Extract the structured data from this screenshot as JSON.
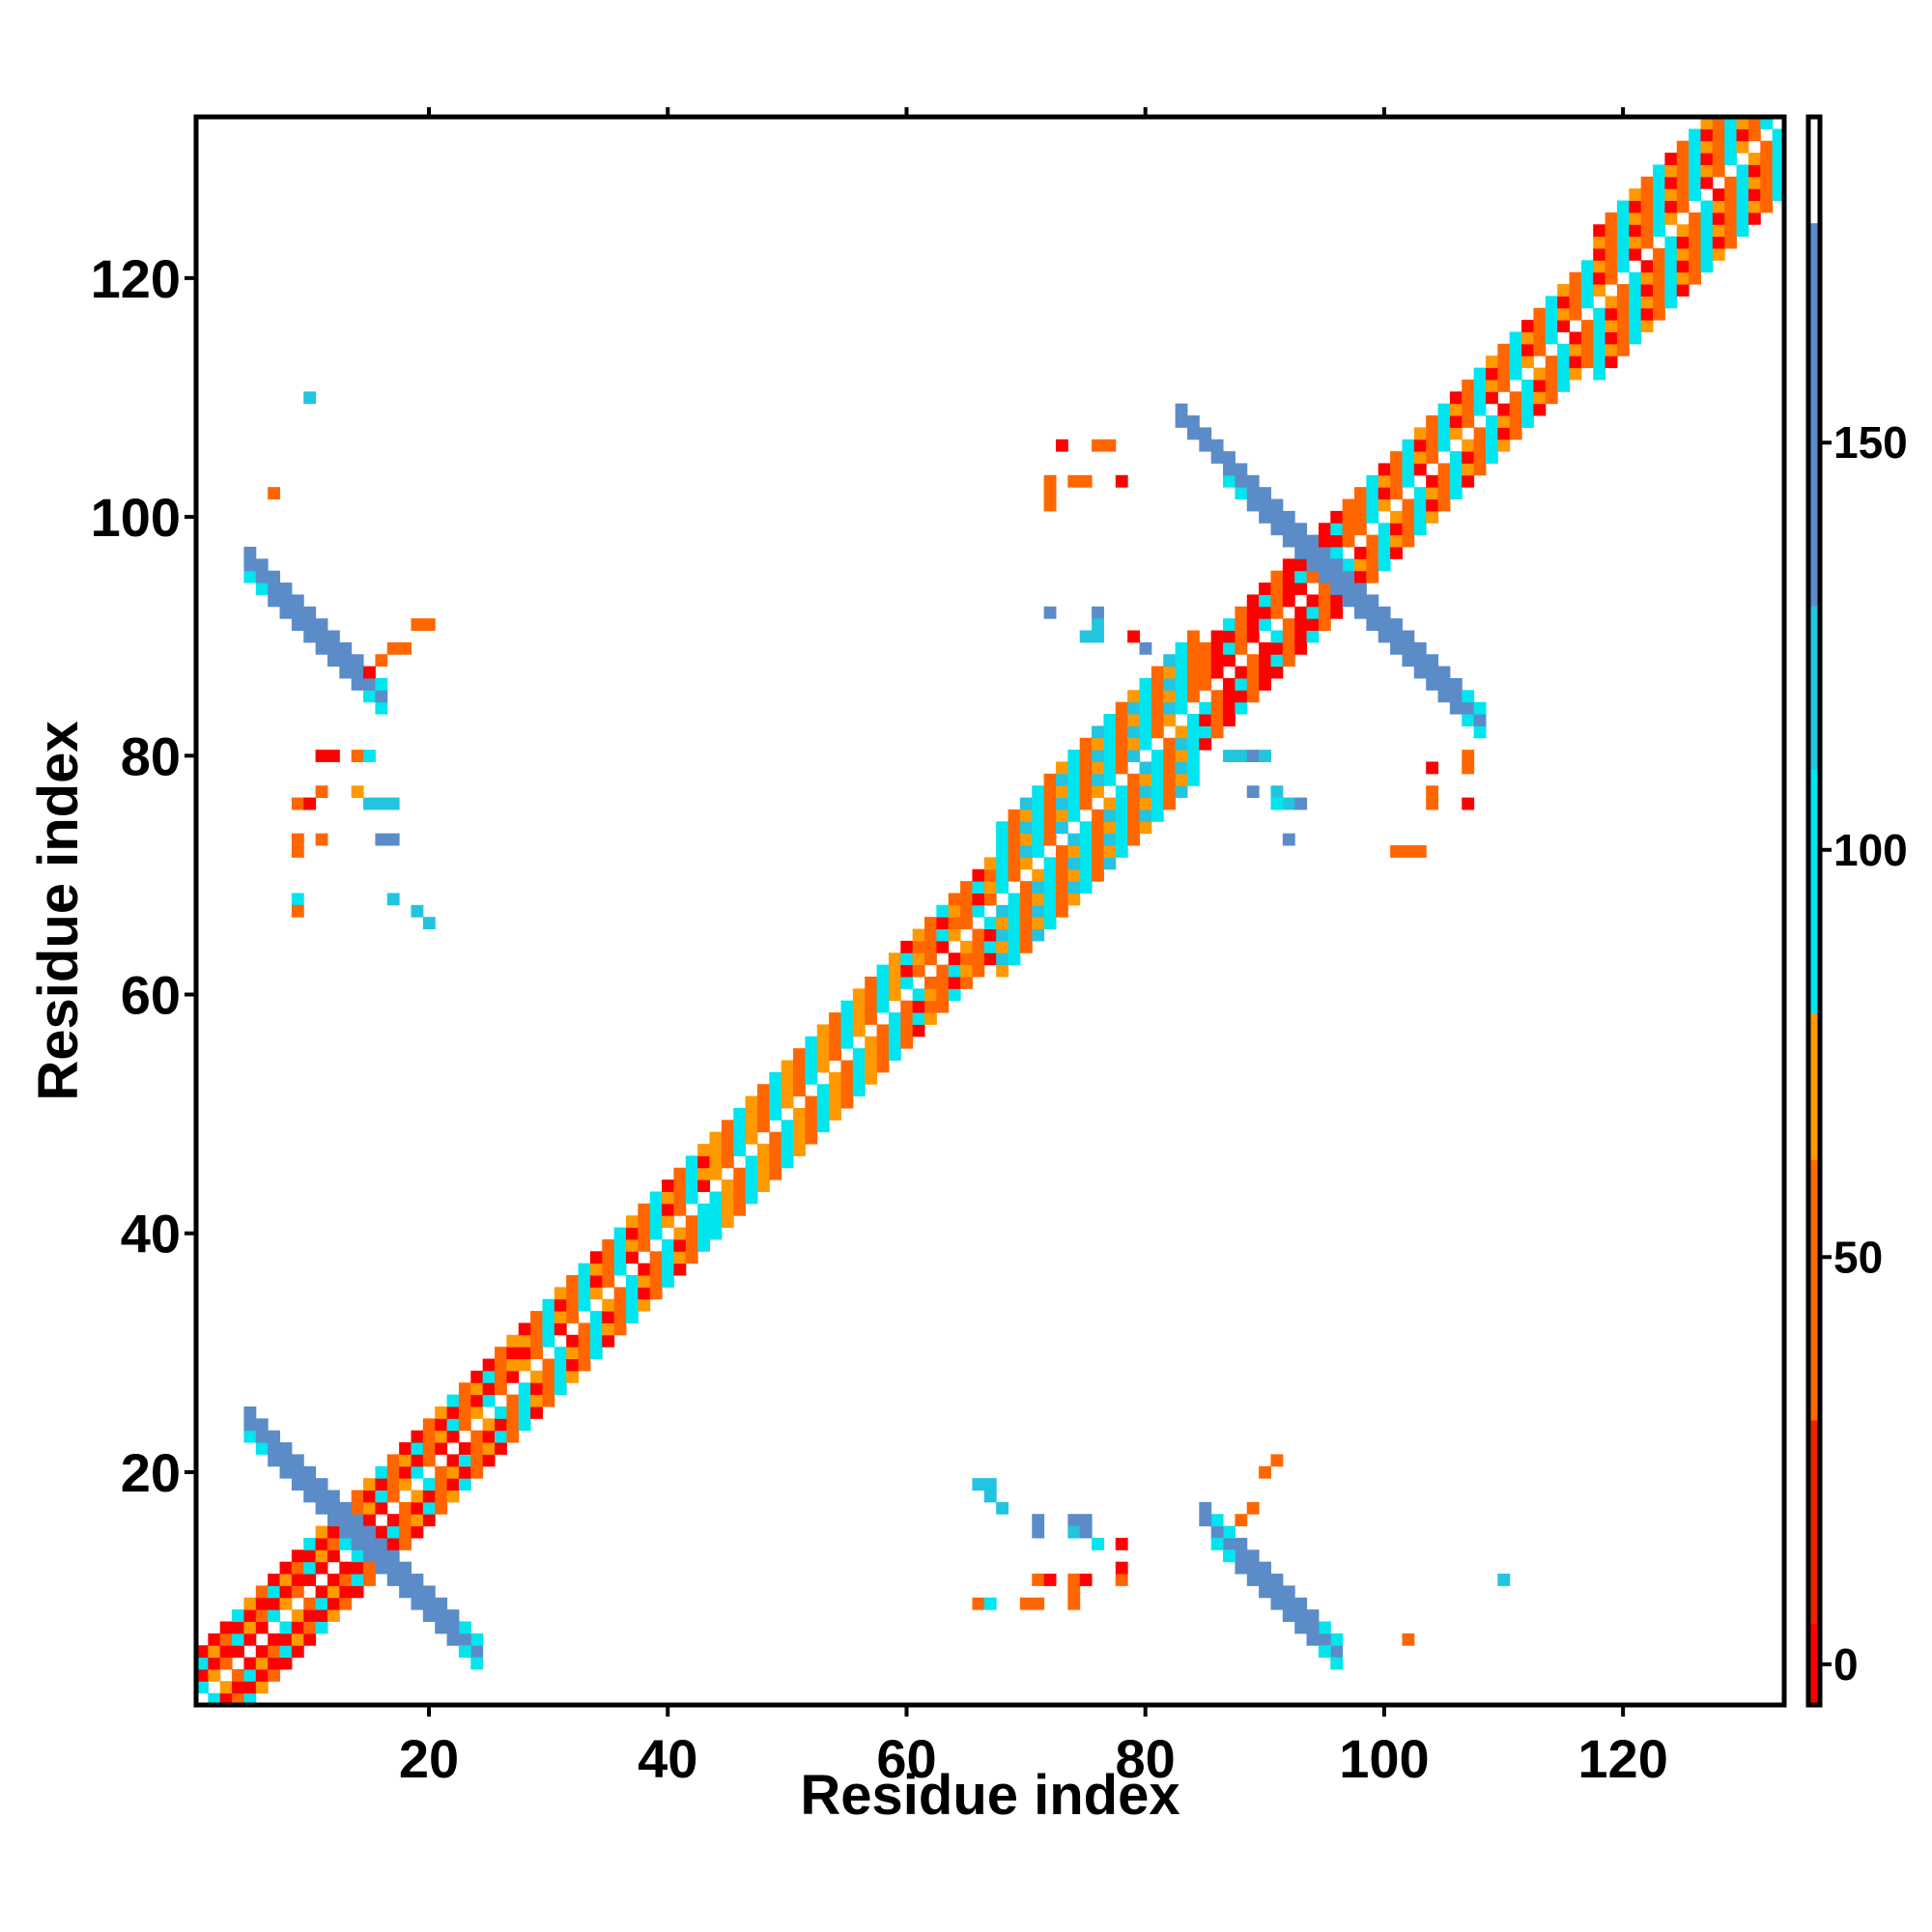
{
  "chart_data": {
    "type": "heatmap",
    "title": "",
    "xlabel": "Residue index",
    "ylabel": "Residue index",
    "xlim": [
      0.5,
      133.5
    ],
    "ylim": [
      0.5,
      133.5
    ],
    "x_ticks": [
      20,
      40,
      60,
      80,
      100,
      120
    ],
    "y_ticks": [
      20,
      40,
      60,
      80,
      100,
      120
    ],
    "grid": false,
    "colorbar": {
      "position": "right",
      "range": [
        -5,
        190
      ],
      "ticks": [
        0,
        50,
        100,
        150
      ],
      "stops": [
        {
          "from": -5,
          "to": 5,
          "color": "#ff0000"
        },
        {
          "from": 5,
          "to": 30,
          "color": "#ee2200"
        },
        {
          "from": 30,
          "to": 62,
          "color": "#ff6a00"
        },
        {
          "from": 62,
          "to": 80,
          "color": "#ff9900"
        },
        {
          "from": 80,
          "to": 110,
          "color": "#00e5ee"
        },
        {
          "from": 110,
          "to": 130,
          "color": "#22c4e0"
        },
        {
          "from": 130,
          "to": 177,
          "color": "#5b8cc8"
        },
        {
          "from": 177,
          "to": 190,
          "color": "#ffffff"
        }
      ]
    },
    "palette": {
      "r": "#ff0000",
      "o": "#ff6600",
      "y": "#ff9900",
      "c": "#00e5ee",
      "t": "#22c4e0",
      "b": "#5b8cc8"
    },
    "diagonal_band": {
      "half_width_small": 4,
      "half_width_large": 6,
      "segments": [
        {
          "from": 1,
          "to": 13,
          "colors": [
            "y",
            "o",
            "r",
            "r",
            "r",
            "c"
          ]
        },
        {
          "from": 14,
          "to": 27,
          "colors": [
            "o",
            "r",
            "r",
            "o",
            "y",
            "c"
          ]
        },
        {
          "from": 28,
          "to": 43,
          "colors": [
            "o",
            "c",
            "y",
            "o",
            "c",
            "r"
          ]
        },
        {
          "from": 44,
          "to": 59,
          "colors": [
            "y",
            "o",
            "c",
            "y",
            "o",
            "c"
          ]
        },
        {
          "from": 60,
          "to": 67,
          "colors": [
            "o",
            "r",
            "y",
            "o",
            "c",
            "o"
          ]
        },
        {
          "from": 68,
          "to": 84,
          "colors": [
            "c",
            "o",
            "y",
            "c",
            "o",
            "t"
          ]
        },
        {
          "from": 85,
          "to": 97,
          "colors": [
            "r",
            "r",
            "o",
            "r",
            "c",
            "o"
          ]
        },
        {
          "from": 98,
          "to": 133,
          "colors": [
            "o",
            "c",
            "y",
            "o",
            "c",
            "r"
          ]
        }
      ]
    },
    "antiparallel_strands": [
      {
        "sum": 29,
        "from": 5,
        "to": 24,
        "core": "b",
        "edge": "c"
      },
      {
        "sum": 191,
        "from": 87,
        "to": 108,
        "core": "b",
        "edge": "c"
      },
      {
        "sum": 101,
        "from": 5,
        "to": 16,
        "core": "b",
        "edge": "c"
      },
      {
        "sum": 101,
        "from": 86,
        "to": 96,
        "core": "b",
        "edge": "c"
      }
    ],
    "contacts": [
      [
        10,
        110,
        "t"
      ],
      [
        7,
        102,
        "o"
      ],
      [
        19,
        91,
        "o"
      ],
      [
        20,
        91,
        "o"
      ],
      [
        17,
        89,
        "o"
      ],
      [
        18,
        89,
        "o"
      ],
      [
        16,
        88,
        "o"
      ],
      [
        15,
        87,
        "r"
      ],
      [
        11,
        80,
        "r"
      ],
      [
        12,
        80,
        "r"
      ],
      [
        14,
        80,
        "o"
      ],
      [
        15,
        80,
        "c"
      ],
      [
        9,
        76,
        "o"
      ],
      [
        10,
        76,
        "r"
      ],
      [
        11,
        77,
        "o"
      ],
      [
        14,
        77,
        "y"
      ],
      [
        15,
        76,
        "t"
      ],
      [
        16,
        76,
        "t"
      ],
      [
        17,
        76,
        "t"
      ],
      [
        9,
        73,
        "o"
      ],
      [
        9,
        72,
        "o"
      ],
      [
        11,
        73,
        "o"
      ],
      [
        16,
        73,
        "b"
      ],
      [
        17,
        73,
        "b"
      ],
      [
        9,
        68,
        "c"
      ],
      [
        9,
        67,
        "o"
      ],
      [
        17,
        68,
        "t"
      ],
      [
        19,
        67,
        "t"
      ],
      [
        20,
        66,
        "t"
      ],
      [
        73,
        106,
        "r"
      ],
      [
        76,
        106,
        "o"
      ],
      [
        77,
        106,
        "o"
      ],
      [
        72,
        103,
        "o"
      ],
      [
        72,
        102,
        "o"
      ],
      [
        72,
        101,
        "o"
      ],
      [
        74,
        103,
        "o"
      ],
      [
        75,
        103,
        "o"
      ],
      [
        78,
        103,
        "r"
      ],
      [
        72,
        92,
        "b"
      ],
      [
        75,
        90,
        "t"
      ],
      [
        76,
        90,
        "t"
      ],
      [
        76,
        92,
        "b"
      ],
      [
        76,
        91,
        "t"
      ],
      [
        79,
        90,
        "r"
      ],
      [
        80,
        89,
        "b"
      ],
      [
        87,
        80,
        "t"
      ],
      [
        88,
        80,
        "t"
      ],
      [
        89,
        80,
        "b"
      ],
      [
        90,
        80,
        "t"
      ],
      [
        89,
        77,
        "b"
      ],
      [
        91,
        77,
        "t"
      ],
      [
        92,
        76,
        "t"
      ],
      [
        93,
        76,
        "b"
      ],
      [
        91,
        76,
        "c"
      ],
      [
        92,
        73,
        "b"
      ],
      [
        101,
        72,
        "o"
      ],
      [
        102,
        72,
        "o"
      ],
      [
        103,
        72,
        "o"
      ],
      [
        104,
        76,
        "o"
      ],
      [
        104,
        77,
        "o"
      ],
      [
        104,
        79,
        "r"
      ],
      [
        107,
        79,
        "o"
      ],
      [
        107,
        80,
        "o"
      ],
      [
        107,
        76,
        "r"
      ],
      [
        66,
        19,
        "t"
      ],
      [
        67,
        19,
        "t"
      ],
      [
        67,
        18,
        "t"
      ],
      [
        68,
        17,
        "t"
      ],
      [
        71,
        16,
        "b"
      ],
      [
        71,
        15,
        "b"
      ],
      [
        74,
        16,
        "b"
      ],
      [
        75,
        16,
        "b"
      ],
      [
        74,
        15,
        "t"
      ],
      [
        75,
        15,
        "b"
      ],
      [
        76,
        14,
        "c"
      ],
      [
        71,
        11,
        "o"
      ],
      [
        72,
        11,
        "r"
      ],
      [
        74,
        11,
        "o"
      ],
      [
        74,
        10,
        "o"
      ],
      [
        75,
        11,
        "r"
      ],
      [
        78,
        11,
        "o"
      ],
      [
        78,
        14,
        "r"
      ],
      [
        78,
        12,
        "r"
      ],
      [
        66,
        9,
        "o"
      ],
      [
        67,
        9,
        "c"
      ],
      [
        70,
        9,
        "o"
      ],
      [
        71,
        9,
        "o"
      ],
      [
        74,
        9,
        "o"
      ],
      [
        90,
        20,
        "o"
      ],
      [
        91,
        21,
        "o"
      ],
      [
        89,
        17,
        "o"
      ],
      [
        88,
        16,
        "o"
      ],
      [
        87,
        15,
        "c"
      ],
      [
        102,
        6,
        "o"
      ],
      [
        110,
        11,
        "t"
      ]
    ]
  }
}
